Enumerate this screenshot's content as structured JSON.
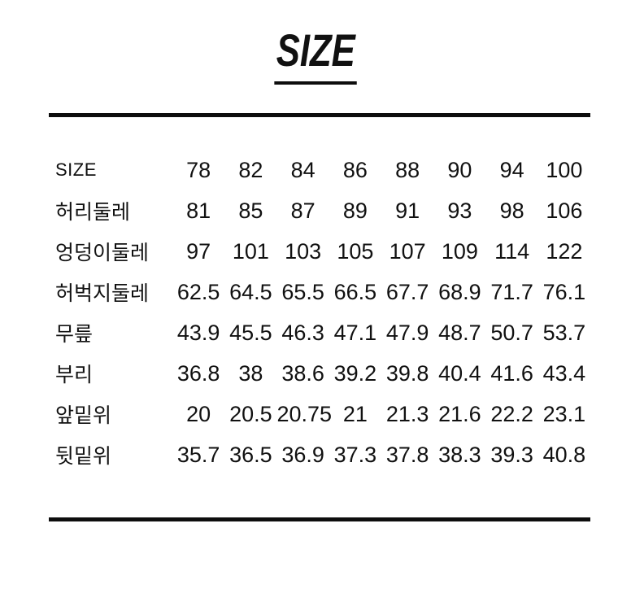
{
  "page": {
    "title": "SIZE"
  },
  "colors": {
    "text": "#111111",
    "rule": "#0d0d0d",
    "background": "#ffffff"
  },
  "table": {
    "corner_label": "SIZE",
    "header_sizes": [
      "78",
      "82",
      "84",
      "86",
      "88",
      "90",
      "94",
      "100"
    ],
    "rows": [
      {
        "label": "허리둘레",
        "values": [
          "81",
          "85",
          "87",
          "89",
          "91",
          "93",
          "98",
          "106"
        ]
      },
      {
        "label": "엉덩이둘레",
        "values": [
          "97",
          "101",
          "103",
          "105",
          "107",
          "109",
          "114",
          "122"
        ]
      },
      {
        "label": "허벅지둘레",
        "values": [
          "62.5",
          "64.5",
          "65.5",
          "66.5",
          "67.7",
          "68.9",
          "71.7",
          "76.1"
        ]
      },
      {
        "label": "무릎",
        "values": [
          "43.9",
          "45.5",
          "46.3",
          "47.1",
          "47.9",
          "48.7",
          "50.7",
          "53.7"
        ]
      },
      {
        "label": "부리",
        "values": [
          "36.8",
          "38",
          "38.6",
          "39.2",
          "39.8",
          "40.4",
          "41.6",
          "43.4"
        ]
      },
      {
        "label": "앞밑위",
        "values": [
          "20",
          "20.5",
          "20.75",
          "21",
          "21.3",
          "21.6",
          "22.2",
          "23.1"
        ]
      },
      {
        "label": "뒷밑위",
        "values": [
          "35.7",
          "36.5",
          "36.9",
          "37.3",
          "37.8",
          "38.3",
          "39.3",
          "40.8"
        ]
      }
    ]
  }
}
